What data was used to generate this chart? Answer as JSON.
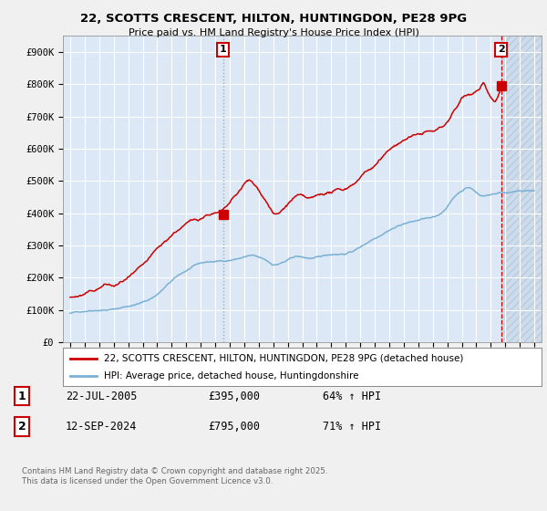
{
  "title_line1": "22, SCOTTS CRESCENT, HILTON, HUNTINGDON, PE28 9PG",
  "title_line2": "Price paid vs. HM Land Registry's House Price Index (HPI)",
  "background_color": "#f0f0f0",
  "plot_bg_color": "#dce8f5",
  "grid_color": "#ffffff",
  "ylim": [
    0,
    950000
  ],
  "yticks": [
    0,
    100000,
    200000,
    300000,
    400000,
    500000,
    600000,
    700000,
    800000,
    900000
  ],
  "ytick_labels": [
    "£0",
    "£100K",
    "£200K",
    "£300K",
    "£400K",
    "£500K",
    "£600K",
    "£700K",
    "£800K",
    "£900K"
  ],
  "year_start": 1995,
  "year_end": 2027,
  "sale1_year": 2005.55,
  "sale1_price": 395000,
  "sale2_year": 2024.71,
  "sale2_price": 795000,
  "legend_line1": "22, SCOTTS CRESCENT, HILTON, HUNTINGDON, PE28 9PG (detached house)",
  "legend_line2": "HPI: Average price, detached house, Huntingdonshire",
  "annotation1_label": "1",
  "annotation1_date": "22-JUL-2005",
  "annotation1_price": "£395,000",
  "annotation1_hpi": "64% ↑ HPI",
  "annotation2_label": "2",
  "annotation2_date": "12-SEP-2024",
  "annotation2_price": "£795,000",
  "annotation2_hpi": "71% ↑ HPI",
  "footer": "Contains HM Land Registry data © Crown copyright and database right 2025.\nThis data is licensed under the Open Government Licence v3.0.",
  "red_color": "#cc0000",
  "blue_color": "#7ab0d4",
  "hatch_color": "#c8d8e8"
}
